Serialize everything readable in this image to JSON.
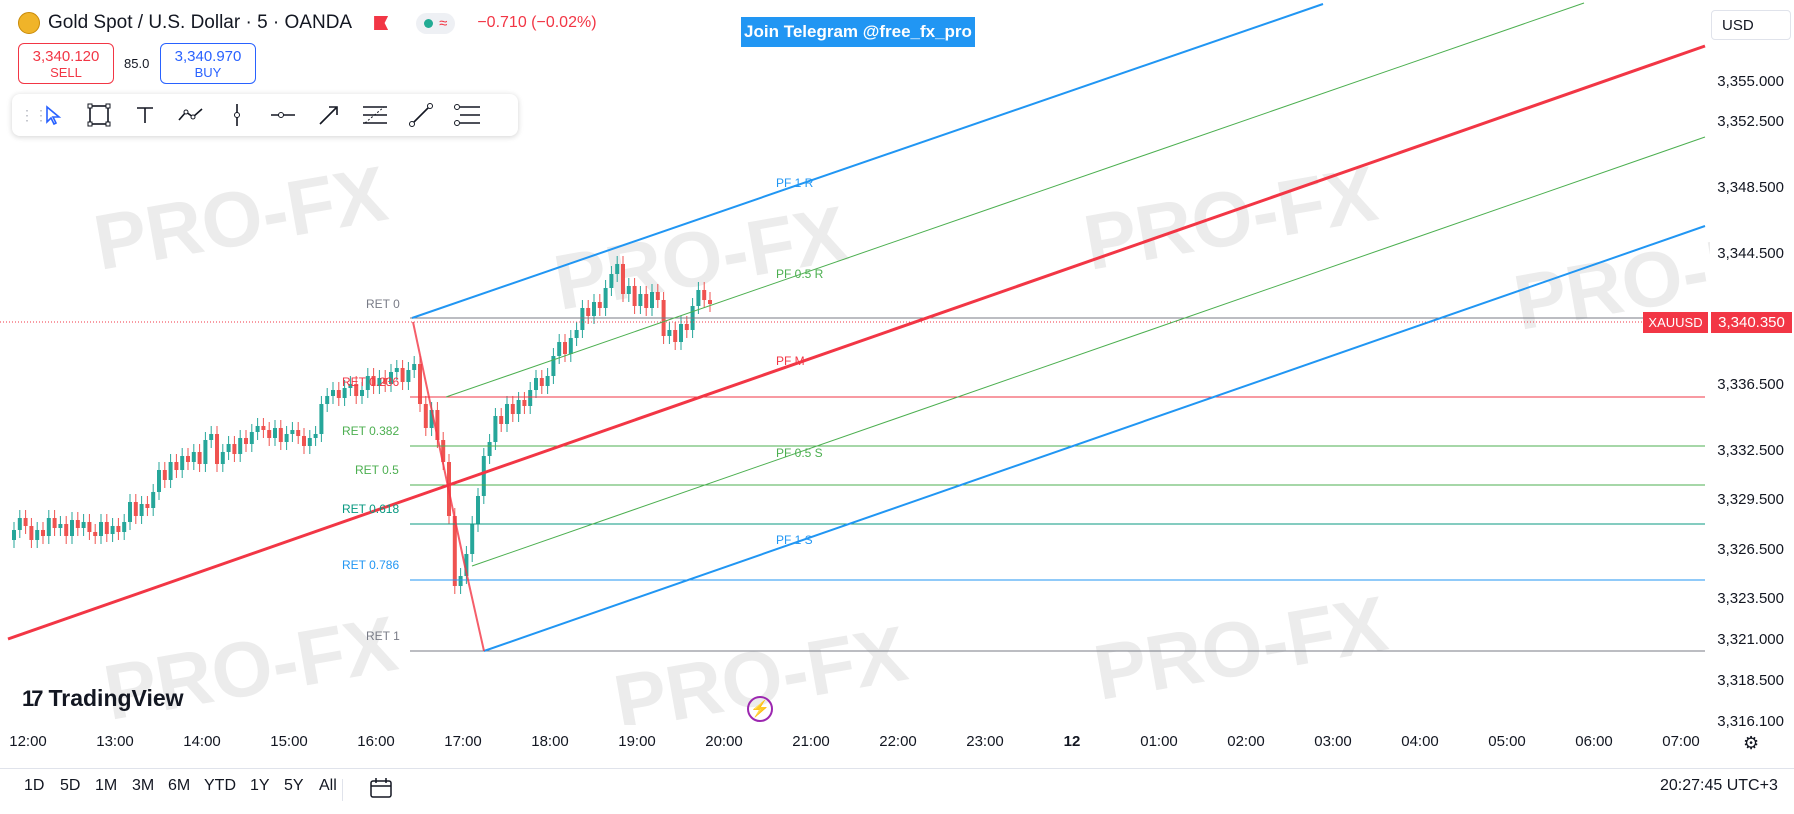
{
  "header": {
    "symbol_title": "Gold Spot / U.S. Dollar · 5 · OANDA",
    "change": "−0.710 (−0.02%)",
    "status_text": "≈"
  },
  "trade": {
    "sell_price": "3,340.120",
    "sell_label": "SELL",
    "spread": "85.0",
    "buy_price": "3,340.970",
    "buy_label": "BUY"
  },
  "toolbar": {
    "tools": [
      "cursor-icon",
      "rectangle-icon",
      "text-icon",
      "path-icon",
      "vertical-line-icon",
      "horizontal-ray-icon",
      "arrow-icon",
      "fib-retracement-icon",
      "trend-line-icon",
      "pitchfork-icon"
    ]
  },
  "banner": {
    "telegram": "Join Telegram @free_fx_pro"
  },
  "currency": "USD",
  "price_axis": {
    "labels": [
      "3,355.000",
      "3,352.500",
      "3,348.500",
      "3,344.500",
      "3,340.350",
      "3,336.500",
      "3,332.500",
      "3,329.500",
      "3,326.500",
      "3,323.500",
      "3,321.000",
      "3,318.500",
      "3,316.100"
    ],
    "symbol_tag": "XAUUSD",
    "current_price": "3,340.350"
  },
  "time_axis": {
    "labels": [
      "12:00",
      "13:00",
      "14:00",
      "15:00",
      "16:00",
      "17:00",
      "18:00",
      "19:00",
      "20:00",
      "21:00",
      "22:00",
      "23:00",
      "12",
      "01:00",
      "02:00",
      "03:00",
      "04:00",
      "05:00",
      "06:00",
      "07:00"
    ]
  },
  "chart_labels": {
    "ret_0": "RET 0",
    "ret_0236": "RET 0.236",
    "ret_0382": "RET 0.382",
    "ret_05": "RET 0.5",
    "ret_0618": "RET 0.618",
    "ret_0786": "RET 0.786",
    "ret_1": "RET 1",
    "pf_1r": "PF 1 R",
    "pf_05r": "PF 0.5 R",
    "pf_m": "PF M",
    "pf_05s": "PF 0.5 S",
    "pf_1s": "PF 1 S"
  },
  "watermark": {
    "text": "PRO-FX"
  },
  "brand": {
    "name": "TradingView"
  },
  "bottom": {
    "ranges": [
      "1D",
      "5D",
      "1M",
      "3M",
      "6M",
      "YTD",
      "1Y",
      "5Y",
      "All"
    ],
    "clock": "20:27:45 UTC+3"
  },
  "colors": {
    "up": "#26a69a",
    "down": "#ef5350",
    "pf_blue": "#2196f3",
    "pf_green": "#4caf50",
    "pf_red": "#f23645",
    "fib_red": "#f23645",
    "fib_green": "#4caf50",
    "fib_teal": "#089981",
    "fib_blue": "#2196f3",
    "fib_grey": "#787b86"
  }
}
